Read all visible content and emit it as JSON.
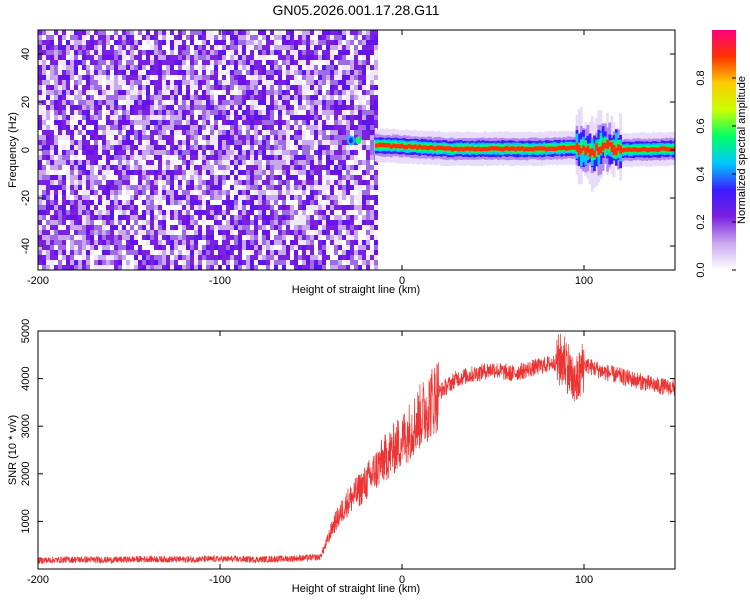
{
  "title": "GN05.2026.001.17.28.G11",
  "chart_data": [
    {
      "type": "heatmap",
      "xlabel": "Height of straight line (km)",
      "ylabel": "Frequency (Hz)",
      "xlim": [
        -200,
        150
      ],
      "ylim": [
        -50,
        50
      ],
      "xticks": [
        "-200",
        "-100",
        "0",
        "100"
      ],
      "xtick_values": [
        -200,
        -100,
        0,
        100
      ],
      "yticks": [
        "-40",
        "-20",
        "0",
        "20",
        "40"
      ],
      "ytick_values": [
        -40,
        -20,
        0,
        20,
        40
      ],
      "noise_region_x": [
        -200,
        -15
      ],
      "signal_ridge": {
        "x": [
          -15,
          0,
          25,
          50,
          75,
          95,
          105,
          110,
          120,
          150
        ],
        "frequency": [
          2,
          1.5,
          0.5,
          0.5,
          0.5,
          1,
          -1,
          2,
          0,
          0.5
        ]
      },
      "colorbar": {
        "label": "Normalized spectral amplitude",
        "range": [
          0,
          1
        ],
        "ticks": [
          "0.0",
          "0.2",
          "0.4",
          "0.6",
          "0.8"
        ],
        "tick_values": [
          0,
          0.2,
          0.4,
          0.6,
          0.8
        ],
        "colors": [
          "#ffffff",
          "#c9a8ef",
          "#7b1fe0",
          "#3b1cff",
          "#00c8ff",
          "#00ff66",
          "#c8ff00",
          "#ffcc00",
          "#ff3300",
          "#ff0080"
        ]
      }
    },
    {
      "type": "line",
      "xlabel": "Height of straight line (km)",
      "ylabel": "SNR (10 * v/v)",
      "xlim": [
        -200,
        150
      ],
      "ylim": [
        0,
        5000
      ],
      "xticks": [
        "-200",
        "-100",
        "0",
        "100"
      ],
      "xtick_values": [
        -200,
        -100,
        0,
        100
      ],
      "yticks": [
        "1000",
        "2000",
        "3000",
        "4000",
        "5000"
      ],
      "ytick_values": [
        1000,
        2000,
        3000,
        4000,
        5000
      ],
      "line_color": "#ee3333",
      "series": [
        {
          "x": [
            -200,
            -180,
            -160,
            -140,
            -120,
            -100,
            -80,
            -60,
            -45,
            -42,
            -38,
            -30,
            -20,
            -10,
            0,
            10,
            20,
            30,
            40,
            50,
            60,
            70,
            80,
            90,
            95,
            100,
            110,
            120,
            130,
            140,
            150
          ],
          "values": [
            180,
            200,
            190,
            210,
            200,
            210,
            200,
            220,
            250,
            500,
            900,
            1400,
            1800,
            2300,
            2700,
            3200,
            3700,
            4000,
            4100,
            4200,
            4100,
            4200,
            4300,
            4400,
            3800,
            4300,
            4150,
            4050,
            3950,
            3850,
            3800
          ]
        }
      ]
    }
  ]
}
